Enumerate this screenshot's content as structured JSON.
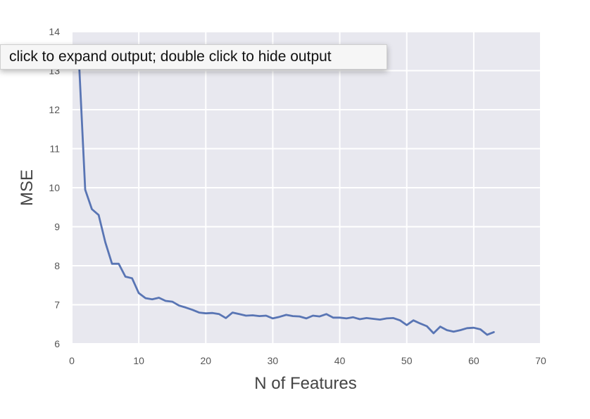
{
  "tooltip": {
    "text": "click to expand output; double click to hide output"
  },
  "colors": {
    "plot_background": "#e8e8ef",
    "grid": "#ffffff",
    "line": "#5975b4"
  },
  "chart_data": {
    "type": "line",
    "title": "",
    "xlabel": "N of Features",
    "ylabel": "MSE",
    "xlim": [
      0,
      70
    ],
    "ylim": [
      6,
      14
    ],
    "xticks": [
      0,
      10,
      20,
      30,
      40,
      50,
      60,
      70
    ],
    "yticks": [
      6,
      7,
      8,
      9,
      10,
      11,
      12,
      13,
      14
    ],
    "grid": true,
    "legend": "none",
    "series": [
      {
        "x": [
          1,
          2,
          3,
          4,
          5,
          6,
          7,
          8,
          9,
          10,
          11,
          12,
          13,
          14,
          15,
          16,
          17,
          18,
          19,
          20,
          21,
          22,
          23,
          24,
          25,
          26,
          27,
          28,
          29,
          30,
          31,
          32,
          33,
          34,
          35,
          36,
          37,
          38,
          39,
          40,
          41,
          42,
          43,
          44,
          45,
          46,
          47,
          48,
          49,
          50,
          51,
          52,
          53,
          54,
          55,
          56,
          57,
          58,
          59,
          60,
          61,
          62,
          63
        ],
        "values": [
          13.5,
          9.95,
          9.45,
          9.3,
          8.6,
          8.05,
          8.05,
          7.72,
          7.68,
          7.3,
          7.17,
          7.14,
          7.18,
          7.1,
          7.08,
          6.98,
          6.93,
          6.87,
          6.8,
          6.78,
          6.79,
          6.76,
          6.66,
          6.8,
          6.76,
          6.72,
          6.73,
          6.71,
          6.72,
          6.65,
          6.69,
          6.74,
          6.71,
          6.7,
          6.65,
          6.72,
          6.7,
          6.76,
          6.67,
          6.67,
          6.65,
          6.68,
          6.63,
          6.66,
          6.64,
          6.62,
          6.65,
          6.66,
          6.6,
          6.48,
          6.6,
          6.52,
          6.45,
          6.27,
          6.44,
          6.35,
          6.31,
          6.35,
          6.4,
          6.41,
          6.37,
          6.23,
          6.3
        ]
      }
    ]
  }
}
